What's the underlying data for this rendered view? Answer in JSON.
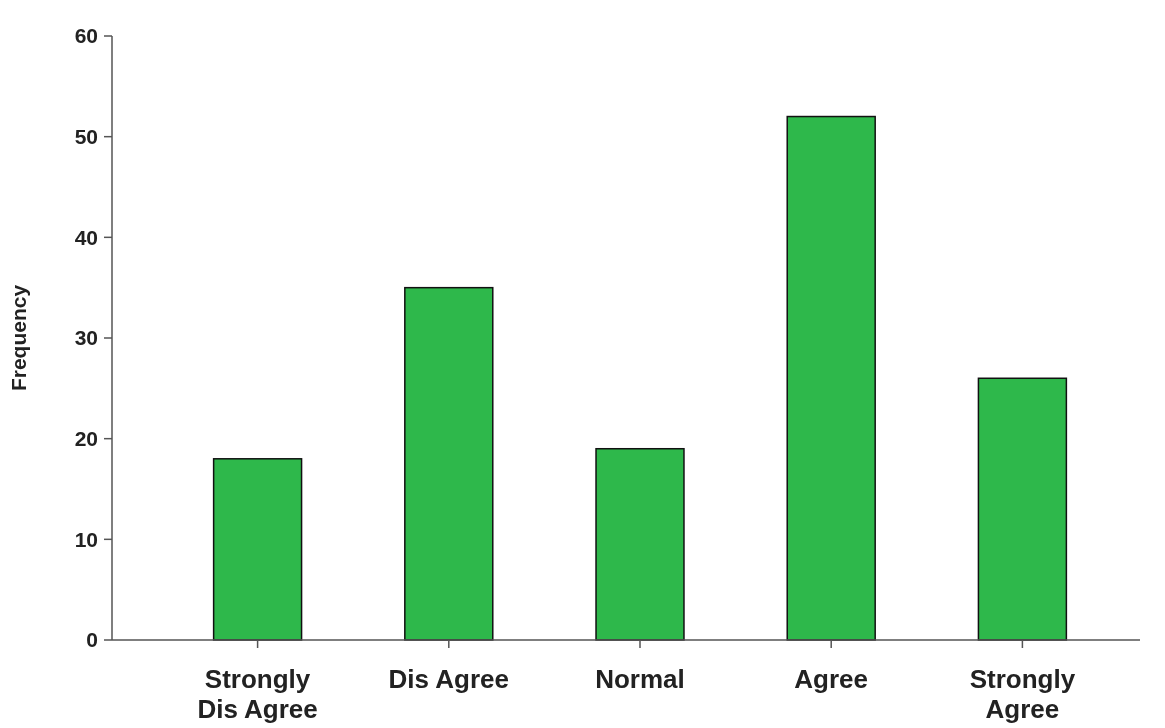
{
  "chart_data": {
    "type": "bar",
    "ylabel": "Frequency",
    "categories": [
      "Strongly Dis Agree",
      "Dis Agree",
      "Normal",
      "Agree",
      "Strongly Agree"
    ],
    "values": [
      18,
      35,
      19,
      52,
      26
    ],
    "color": "#2eb84b",
    "ylim": [
      0,
      60
    ],
    "yticks": [
      0,
      10,
      20,
      30,
      40,
      50,
      60
    ],
    "grid": false
  }
}
